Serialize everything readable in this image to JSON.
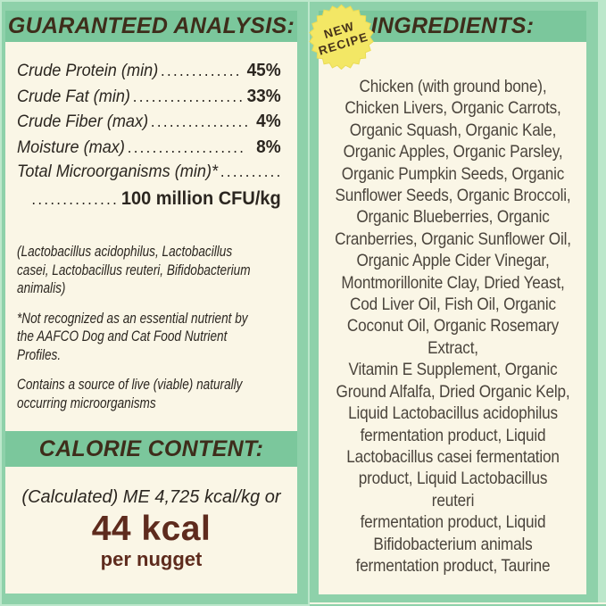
{
  "colors": {
    "page_background": "#bce7cb",
    "panel_border_green": "#8ed1aa",
    "header_band_green": "#7bc79c",
    "cream_background": "#faf6e6",
    "heading_text": "#3e2d1b",
    "body_text": "#2b2620",
    "ingredients_text": "#4a443c",
    "kcal_text": "#5e2b1d",
    "badge_yellow": "#f3e765",
    "badge_text": "#46321a"
  },
  "left_panel": {
    "header": "GUARANTEED ANALYSIS:",
    "rows": [
      {
        "label": "Crude Protein (min)",
        "dots": ".............",
        "value": "45%"
      },
      {
        "label": "Crude Fat (min)",
        "dots": "..................",
        "value": "33%"
      },
      {
        "label": "Crude Fiber (max)",
        "dots": "................",
        "value": "4%"
      },
      {
        "label": "Moisture (max)",
        "dots": "...................",
        "value": "8%"
      },
      {
        "label": "Total Microorganisms (min)*",
        "dots": "..........",
        "value": ""
      },
      {
        "label": "",
        "dots": "..............",
        "value": "100 million CFU/kg"
      }
    ],
    "notes": [
      "(Lactobacillus acidophilus, Lactobacillus\ncasei, Lactobacillus reuteri, Bifidobacterium\nanimalis)",
      "*Not recognized as an essential nutrient by\nthe AAFCO Dog and Cat Food Nutrient\nProfiles.",
      "Contains a source of live (viable) naturally\noccurring microorganisms"
    ],
    "calorie": {
      "header": "CALORIE CONTENT:",
      "line1": "(Calculated) ME 4,725 kcal/kg or",
      "value": "44 kcal",
      "unit": "per nugget"
    }
  },
  "right_panel": {
    "header": "INGREDIENTS:",
    "badge": {
      "line1": "NEW",
      "line2": "RECIPE"
    },
    "ingredients_text": "Chicken (with ground bone),\nChicken Livers, Organic Carrots,\nOrganic Squash, Organic Kale,\nOrganic Apples, Organic Parsley,\nOrganic Pumpkin Seeds, Organic\nSunflower Seeds, Organic Broccoli,\nOrganic Blueberries, Organic\nCranberries, Organic Sunflower Oil,\nOrganic Apple Cider Vinegar,\nMontmorillonite Clay, Dried Yeast,\nCod Liver Oil, Fish Oil, Organic\nCoconut Oil, Organic Rosemary\nExtract,\nVitamin E Supplement, Organic\nGround Alfalfa, Dried Organic Kelp,\nLiquid Lactobacillus acidophilus\nfermentation product, Liquid\nLactobacillus casei fermentation\nproduct, Liquid Lactobacillus\nreuteri\nfermentation product, Liquid\nBifidobacterium animals\nfermentation product, Taurine"
  }
}
